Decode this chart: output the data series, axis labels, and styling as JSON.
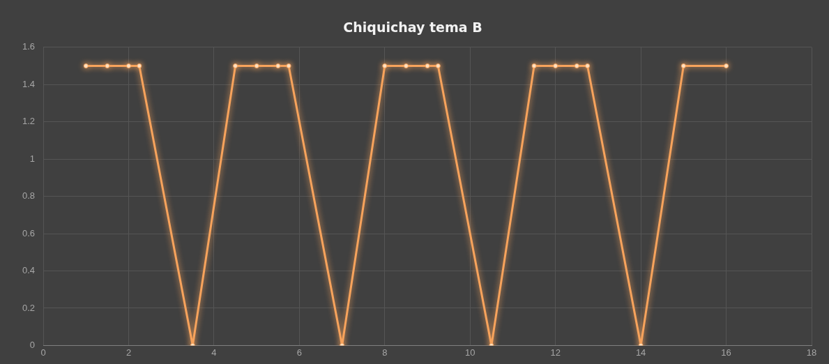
{
  "chart_data": {
    "type": "line",
    "title": "Chiquichay tema B",
    "x": [
      1,
      1.5,
      2,
      2.25,
      3.5,
      4.5,
      5,
      5.5,
      5.75,
      7,
      8,
      8.5,
      9,
      9.25,
      10.5,
      11.5,
      12,
      12.5,
      12.75,
      14,
      15,
      16
    ],
    "series": [
      {
        "color": "#f7a35c",
        "values": [
          1.5,
          1.5,
          1.5,
          1.5,
          0,
          1.5,
          1.5,
          1.5,
          1.5,
          0,
          1.5,
          1.5,
          1.5,
          1.5,
          0,
          1.5,
          1.5,
          1.5,
          1.5,
          0,
          1.5,
          1.5
        ]
      }
    ],
    "xlim": [
      0,
      18
    ],
    "xticks": [
      0,
      2,
      4,
      6,
      8,
      10,
      12,
      14,
      16,
      18
    ],
    "ylim": [
      0,
      1.6
    ],
    "yticks": [
      0,
      0.2,
      0.4,
      0.6,
      0.8,
      1,
      1.2,
      1.4,
      1.6
    ],
    "grid": true,
    "legend": false,
    "marker": "circle",
    "line_style": "solid"
  }
}
